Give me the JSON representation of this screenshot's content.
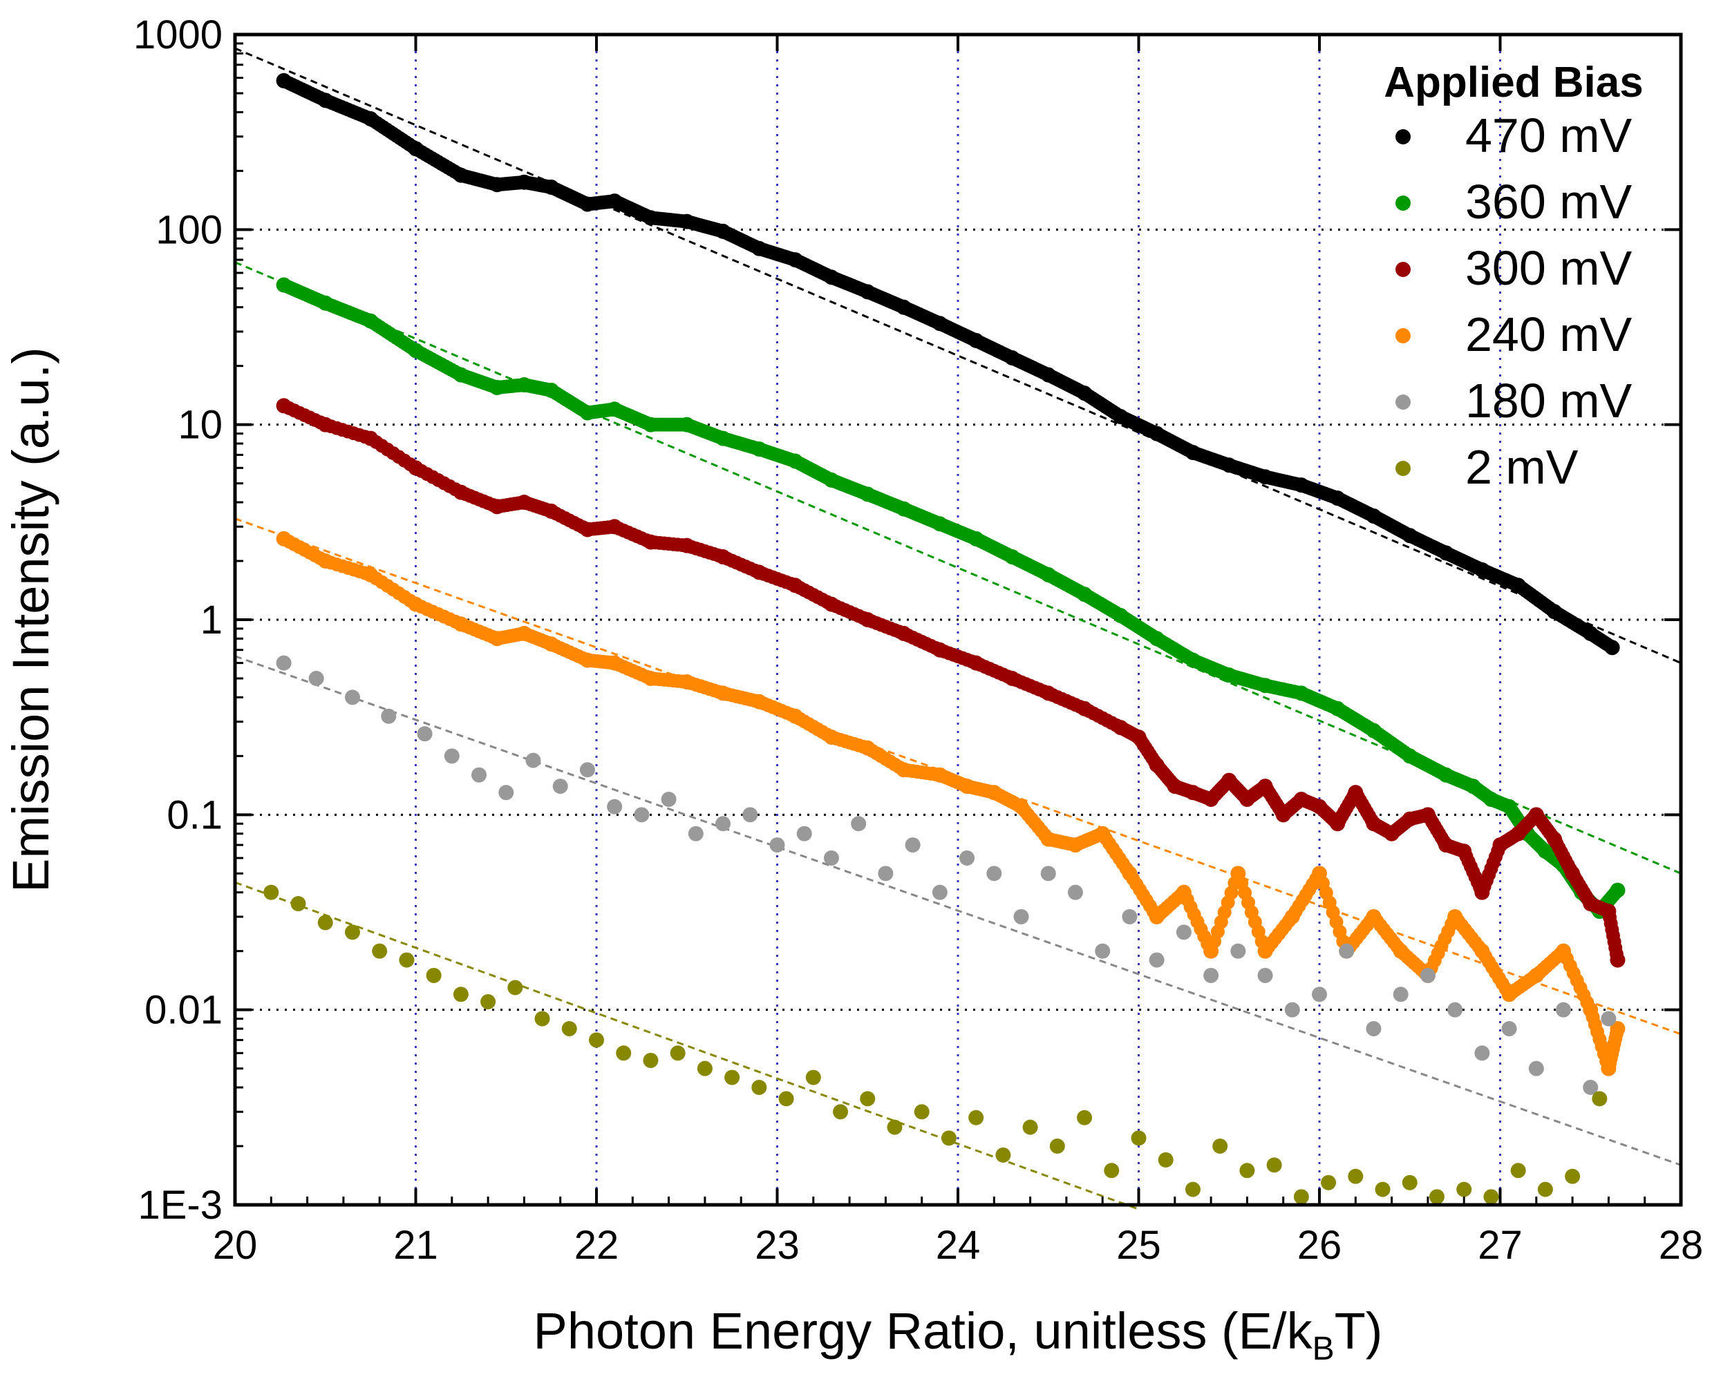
{
  "chart_data": {
    "type": "scatter",
    "title": "",
    "xlabel": "Photon Energy Ratio, unitless (E/k",
    "xlabel_sub": "B",
    "xlabel_end": "T)",
    "ylabel": "Emission Intensity (a.u.)",
    "xlim": [
      20,
      28
    ],
    "ylim": [
      0.001,
      1000
    ],
    "yscale": "log",
    "x_ticks": [
      20,
      21,
      22,
      23,
      24,
      25,
      26,
      27,
      28
    ],
    "x_tick_labels": [
      "20",
      "21",
      "22",
      "23",
      "24",
      "25",
      "26",
      "27",
      "28"
    ],
    "y_ticks": [
      1000,
      100,
      10,
      1,
      0.1,
      0.01,
      0.001
    ],
    "y_tick_labels": [
      "1000",
      "100",
      "10",
      "1",
      "0.1",
      "0.01",
      "1E-3"
    ],
    "grid": "dotted",
    "legend": {
      "title": "Applied Bias",
      "position": "top-right"
    },
    "series": [
      {
        "name": "470 mV",
        "color": "#000000",
        "style": "dense",
        "x": [
          20.27,
          20.5,
          20.75,
          21.0,
          21.25,
          21.45,
          21.6,
          21.75,
          21.95,
          22.1,
          22.3,
          22.5,
          22.7,
          22.9,
          23.1,
          23.3,
          23.5,
          23.7,
          23.9,
          24.1,
          24.3,
          24.5,
          24.7,
          24.9,
          25.1,
          25.3,
          25.5,
          25.7,
          25.9,
          26.1,
          26.3,
          26.5,
          26.7,
          26.9,
          27.1,
          27.3,
          27.5,
          27.62
        ],
        "y": [
          580,
          460,
          370,
          260,
          190,
          170,
          175,
          165,
          135,
          140,
          115,
          110,
          98,
          80,
          70,
          57,
          48,
          40,
          33,
          27,
          22,
          18,
          14.5,
          11,
          9,
          7.2,
          6.2,
          5.4,
          4.9,
          4.2,
          3.4,
          2.7,
          2.2,
          1.8,
          1.5,
          1.1,
          0.85,
          0.72
        ],
        "fit": {
          "x": [
            20,
            28
          ],
          "y": [
            850,
            0.6
          ]
        }
      },
      {
        "name": "360 mV",
        "color": "#009900",
        "style": "dense",
        "x": [
          20.27,
          20.5,
          20.75,
          21.0,
          21.25,
          21.45,
          21.6,
          21.75,
          21.95,
          22.1,
          22.3,
          22.5,
          22.7,
          22.9,
          23.1,
          23.3,
          23.5,
          23.7,
          23.9,
          24.1,
          24.3,
          24.5,
          24.7,
          24.9,
          25.1,
          25.3,
          25.5,
          25.7,
          25.9,
          26.1,
          26.3,
          26.5,
          26.7,
          26.85,
          26.95,
          27.05,
          27.15,
          27.25,
          27.35,
          27.45,
          27.55,
          27.65
        ],
        "y": [
          52,
          42,
          34,
          24,
          18,
          15.5,
          16,
          15,
          11.5,
          12,
          10,
          10,
          8.5,
          7.5,
          6.5,
          5.2,
          4.4,
          3.7,
          3.1,
          2.6,
          2.1,
          1.7,
          1.35,
          1.05,
          0.8,
          0.62,
          0.52,
          0.46,
          0.42,
          0.35,
          0.27,
          0.2,
          0.16,
          0.14,
          0.12,
          0.11,
          0.08,
          0.065,
          0.055,
          0.04,
          0.032,
          0.041
        ],
        "fit": {
          "x": [
            20,
            28
          ],
          "y": [
            68,
            0.05
          ]
        }
      },
      {
        "name": "300 mV",
        "color": "#990000",
        "style": "mixed",
        "x": [
          20.27,
          20.5,
          20.75,
          21.0,
          21.25,
          21.45,
          21.6,
          21.75,
          21.95,
          22.1,
          22.3,
          22.5,
          22.7,
          22.9,
          23.1,
          23.3,
          23.5,
          23.7,
          23.9,
          24.1,
          24.3,
          24.5,
          24.7,
          24.9,
          25.0,
          25.1,
          25.2,
          25.3,
          25.4,
          25.5,
          25.6,
          25.7,
          25.8,
          25.9,
          26.0,
          26.1,
          26.2,
          26.3,
          26.4,
          26.5,
          26.6,
          26.7,
          26.8,
          26.9,
          27.0,
          27.1,
          27.2,
          27.3,
          27.4,
          27.5,
          27.6,
          27.65
        ],
        "y": [
          12.5,
          10,
          8.5,
          6,
          4.5,
          3.8,
          4,
          3.6,
          2.9,
          3,
          2.5,
          2.4,
          2.1,
          1.75,
          1.5,
          1.2,
          1.0,
          0.85,
          0.7,
          0.6,
          0.5,
          0.42,
          0.35,
          0.28,
          0.25,
          0.18,
          0.14,
          0.13,
          0.12,
          0.15,
          0.12,
          0.14,
          0.1,
          0.12,
          0.11,
          0.09,
          0.13,
          0.09,
          0.08,
          0.095,
          0.1,
          0.07,
          0.065,
          0.04,
          0.07,
          0.08,
          0.1,
          0.075,
          0.05,
          0.035,
          0.032,
          0.018
        ],
        "fit": null
      },
      {
        "name": "240 mV",
        "color": "#ff8800",
        "style": "mixed",
        "x": [
          20.27,
          20.5,
          20.75,
          21.0,
          21.25,
          21.45,
          21.6,
          21.75,
          21.95,
          22.1,
          22.3,
          22.5,
          22.7,
          22.9,
          23.1,
          23.3,
          23.5,
          23.7,
          23.9,
          24.05,
          24.2,
          24.35,
          24.5,
          24.65,
          24.8,
          24.95,
          25.1,
          25.25,
          25.4,
          25.55,
          25.7,
          25.85,
          26.0,
          26.15,
          26.3,
          26.45,
          26.6,
          26.75,
          26.9,
          27.05,
          27.2,
          27.35,
          27.5,
          27.6,
          27.65
        ],
        "y": [
          2.6,
          2.0,
          1.7,
          1.2,
          0.95,
          0.8,
          0.85,
          0.75,
          0.62,
          0.6,
          0.5,
          0.48,
          0.42,
          0.38,
          0.32,
          0.25,
          0.22,
          0.17,
          0.16,
          0.14,
          0.13,
          0.11,
          0.075,
          0.07,
          0.08,
          0.05,
          0.03,
          0.04,
          0.02,
          0.05,
          0.02,
          0.03,
          0.05,
          0.02,
          0.03,
          0.02,
          0.015,
          0.03,
          0.02,
          0.012,
          0.015,
          0.02,
          0.01,
          0.005,
          0.008
        ],
        "fit": {
          "x": [
            20,
            28
          ],
          "y": [
            3.3,
            0.0075
          ]
        }
      },
      {
        "name": "180 mV",
        "color": "#999999",
        "style": "scattered",
        "x": [
          20.27,
          20.45,
          20.65,
          20.85,
          21.05,
          21.2,
          21.35,
          21.5,
          21.65,
          21.8,
          21.95,
          22.1,
          22.25,
          22.4,
          22.55,
          22.7,
          22.85,
          23.0,
          23.15,
          23.3,
          23.45,
          23.6,
          23.75,
          23.9,
          24.05,
          24.2,
          24.35,
          24.5,
          24.65,
          24.8,
          24.95,
          25.1,
          25.25,
          25.4,
          25.55,
          25.7,
          25.85,
          26.0,
          26.15,
          26.3,
          26.45,
          26.6,
          26.75,
          26.9,
          27.05,
          27.2,
          27.35,
          27.5,
          27.6
        ],
        "y": [
          0.6,
          0.5,
          0.4,
          0.32,
          0.26,
          0.2,
          0.16,
          0.13,
          0.19,
          0.14,
          0.17,
          0.11,
          0.1,
          0.12,
          0.08,
          0.09,
          0.1,
          0.07,
          0.08,
          0.06,
          0.09,
          0.05,
          0.07,
          0.04,
          0.06,
          0.05,
          0.03,
          0.05,
          0.04,
          0.02,
          0.03,
          0.018,
          0.025,
          0.015,
          0.02,
          0.015,
          0.01,
          0.012,
          0.02,
          0.008,
          0.012,
          0.015,
          0.01,
          0.006,
          0.008,
          0.005,
          0.01,
          0.004,
          0.009
        ],
        "fit": {
          "x": [
            20,
            28
          ],
          "y": [
            0.65,
            0.0016
          ]
        }
      },
      {
        "name": "2 mV",
        "color": "#888800",
        "style": "scattered",
        "x": [
          20.2,
          20.35,
          20.5,
          20.65,
          20.8,
          20.95,
          21.1,
          21.25,
          21.4,
          21.55,
          21.7,
          21.85,
          22.0,
          22.15,
          22.3,
          22.45,
          22.6,
          22.75,
          22.9,
          23.05,
          23.2,
          23.35,
          23.5,
          23.65,
          23.8,
          23.95,
          24.1,
          24.25,
          24.4,
          24.55,
          24.7,
          24.85,
          25.0,
          25.15,
          25.3,
          25.45,
          25.6,
          25.75,
          25.9,
          26.05,
          26.2,
          26.35,
          26.5,
          26.65,
          26.8,
          26.95,
          27.1,
          27.25,
          27.4,
          27.55
        ],
        "y": [
          0.04,
          0.035,
          0.028,
          0.025,
          0.02,
          0.018,
          0.015,
          0.012,
          0.011,
          0.013,
          0.009,
          0.008,
          0.007,
          0.006,
          0.0055,
          0.006,
          0.005,
          0.0045,
          0.004,
          0.0035,
          0.0045,
          0.003,
          0.0035,
          0.0025,
          0.003,
          0.0022,
          0.0028,
          0.0018,
          0.0025,
          0.002,
          0.0028,
          0.0015,
          0.0022,
          0.0017,
          0.0012,
          0.002,
          0.0015,
          0.0016,
          0.0011,
          0.0013,
          0.0014,
          0.0012,
          0.0013,
          0.0011,
          0.0012,
          0.0011,
          0.0015,
          0.0012,
          0.0014,
          0.0035
        ],
        "fit": {
          "x": [
            20,
            25
          ],
          "y": [
            0.045,
            0.00095
          ]
        }
      }
    ]
  }
}
